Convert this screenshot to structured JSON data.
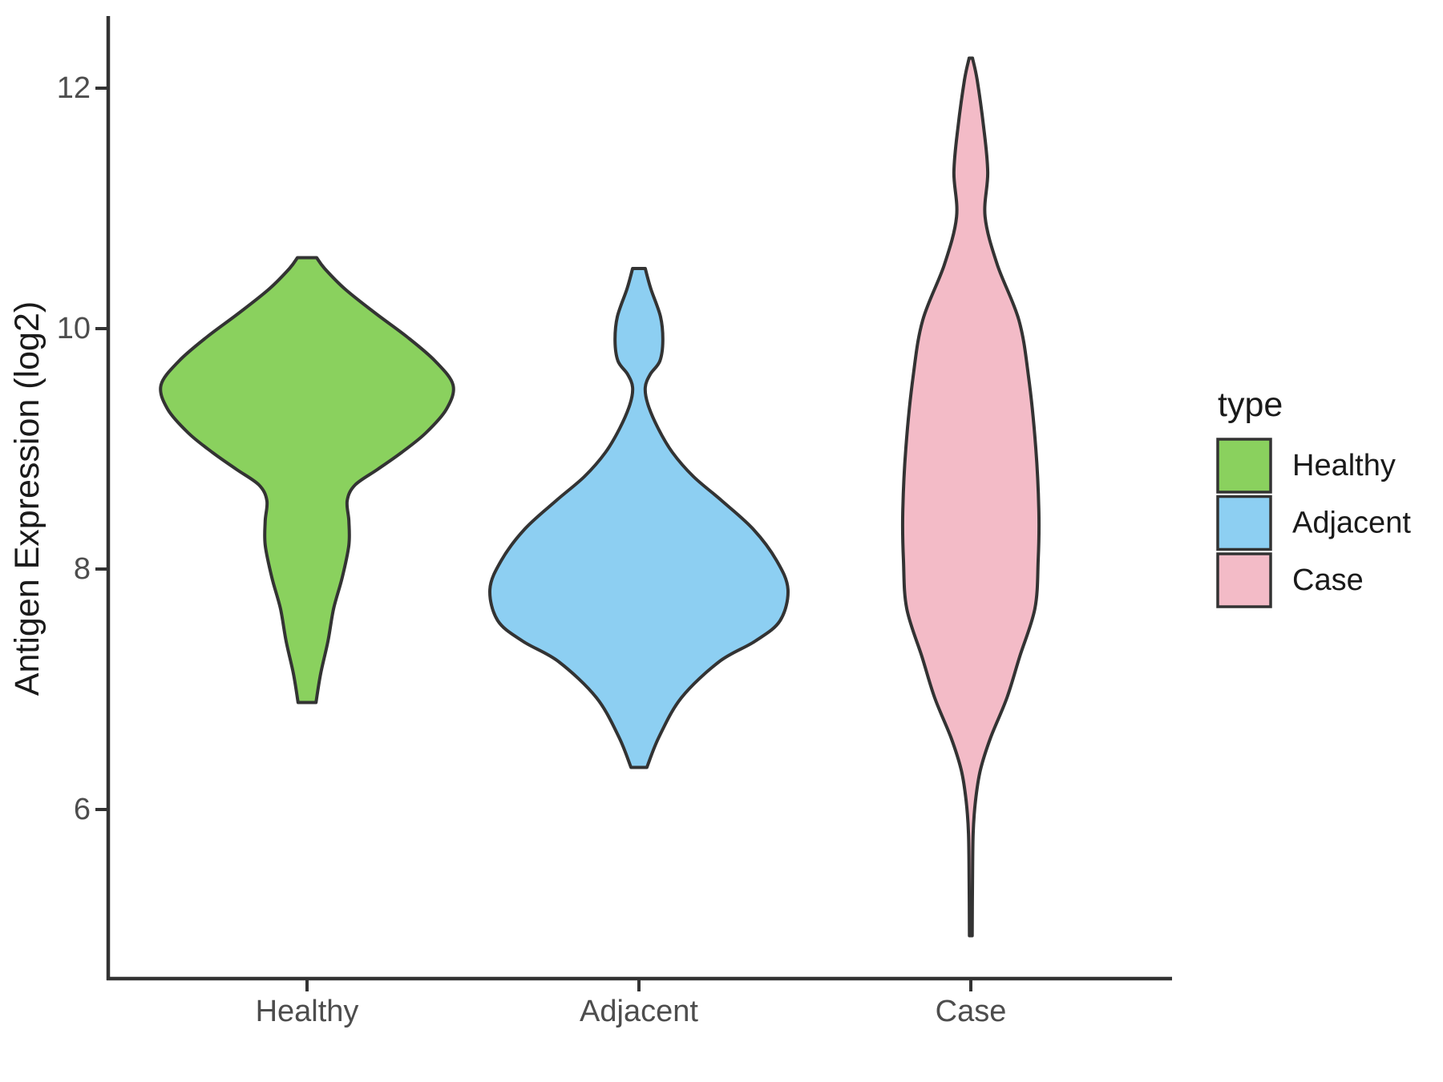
{
  "figure": {
    "y_axis": {
      "title": "Antigen Expression (log2)",
      "tick_labels": [
        "6",
        "8",
        "10",
        "12"
      ],
      "ticks": [
        6,
        8,
        10,
        12
      ]
    },
    "x_axis": {
      "categories": [
        "Healthy",
        "Adjacent",
        "Case"
      ]
    },
    "legend": {
      "title": "type",
      "entries": [
        {
          "label": "Healthy",
          "color": "#8AD15E"
        },
        {
          "label": "Adjacent",
          "color": "#8DCFF2"
        },
        {
          "label": "Case",
          "color": "#F3BBC7"
        }
      ]
    },
    "colors": {
      "outline": "#333333",
      "axis": "#333333",
      "tick_text": "#4d4d4d",
      "title_text": "#1a1a1a",
      "background": "#ffffff"
    }
  },
  "chart_data": {
    "type": "violin",
    "title": "",
    "xlabel": "",
    "ylabel": "Antigen Expression (log2)",
    "categories": [
      "Healthy",
      "Adjacent",
      "Case"
    ],
    "y_ticks": [
      6,
      8,
      10,
      12
    ],
    "ylim": [
      4.6,
      12.6
    ],
    "grid": false,
    "legend_position": "right",
    "legend_title": "type",
    "series": [
      {
        "name": "Healthy",
        "color": "#8AD15E",
        "value_range": [
          6.89,
          10.59
        ],
        "widest_at": 9.53,
        "max_halfwidth_units": 0.44,
        "trim_ends": "flat",
        "profile": [
          [
            10.59,
            0.029
          ],
          [
            10.5,
            0.053
          ],
          [
            10.33,
            0.114
          ],
          [
            10.13,
            0.205
          ],
          [
            9.93,
            0.302
          ],
          [
            9.73,
            0.386
          ],
          [
            9.53,
            0.44
          ],
          [
            9.33,
            0.42
          ],
          [
            9.13,
            0.357
          ],
          [
            8.97,
            0.285
          ],
          [
            8.83,
            0.213
          ],
          [
            8.7,
            0.145
          ],
          [
            8.57,
            0.121
          ],
          [
            8.4,
            0.126
          ],
          [
            8.2,
            0.126
          ],
          [
            7.93,
            0.106
          ],
          [
            7.67,
            0.08
          ],
          [
            7.4,
            0.063
          ],
          [
            7.13,
            0.041
          ],
          [
            6.89,
            0.027
          ]
        ]
      },
      {
        "name": "Adjacent",
        "color": "#8DCFF2",
        "value_range": [
          6.35,
          10.5
        ],
        "widest_at": 7.83,
        "max_halfwidth_units": 0.449,
        "trim_ends": "flat",
        "profile": [
          [
            10.5,
            0.019
          ],
          [
            10.33,
            0.036
          ],
          [
            10.1,
            0.065
          ],
          [
            9.9,
            0.072
          ],
          [
            9.73,
            0.063
          ],
          [
            9.62,
            0.034
          ],
          [
            9.51,
            0.019
          ],
          [
            9.37,
            0.027
          ],
          [
            9.17,
            0.058
          ],
          [
            8.97,
            0.101
          ],
          [
            8.77,
            0.164
          ],
          [
            8.57,
            0.249
          ],
          [
            8.33,
            0.345
          ],
          [
            8.07,
            0.415
          ],
          [
            7.83,
            0.449
          ],
          [
            7.57,
            0.425
          ],
          [
            7.4,
            0.35
          ],
          [
            7.23,
            0.242
          ],
          [
            6.93,
            0.128
          ],
          [
            6.6,
            0.06
          ],
          [
            6.35,
            0.024
          ]
        ]
      },
      {
        "name": "Case",
        "color": "#F3BBC7",
        "value_range": [
          4.95,
          12.25
        ],
        "widest_at": 8.47,
        "max_halfwidth_units": 0.205,
        "trim_ends": "pointed",
        "profile": [
          [
            12.25,
            0.005
          ],
          [
            12.07,
            0.019
          ],
          [
            11.67,
            0.039
          ],
          [
            11.3,
            0.051
          ],
          [
            10.93,
            0.043
          ],
          [
            10.53,
            0.08
          ],
          [
            10.07,
            0.145
          ],
          [
            9.6,
            0.174
          ],
          [
            9.0,
            0.196
          ],
          [
            8.47,
            0.205
          ],
          [
            8.07,
            0.203
          ],
          [
            7.67,
            0.193
          ],
          [
            7.27,
            0.147
          ],
          [
            6.93,
            0.109
          ],
          [
            6.6,
            0.06
          ],
          [
            6.33,
            0.029
          ],
          [
            6.07,
            0.014
          ],
          [
            5.8,
            0.007
          ],
          [
            5.4,
            0.005
          ],
          [
            4.95,
            0.004
          ]
        ]
      }
    ]
  }
}
